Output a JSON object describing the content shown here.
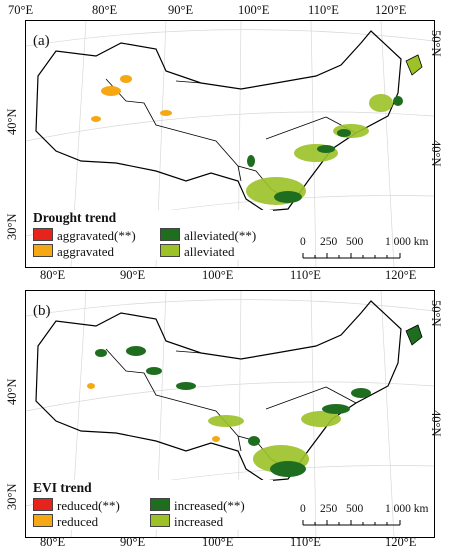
{
  "top_axis": [
    "70°E",
    "80°E",
    "90°E",
    "100°E",
    "110°E",
    "120°E"
  ],
  "bottom_axis": [
    "80°E",
    "90°E",
    "100°E",
    "110°E",
    "120°E"
  ],
  "left_axis": [
    "40°N",
    "30°N"
  ],
  "right_axis": [
    "50°N",
    "40°N"
  ],
  "panels": [
    {
      "label": "(a)",
      "legend_title": "Drought trend",
      "legend_items": [
        {
          "label": "aggravated(**)",
          "color": "#e8231b"
        },
        {
          "label": "alleviated(**)",
          "color": "#1f6e1f"
        },
        {
          "label": "aggravated",
          "color": "#f5a814"
        },
        {
          "label": "alleviated",
          "color": "#9cc227"
        }
      ]
    },
    {
      "label": "(b)",
      "legend_title": "EVI trend",
      "legend_items": [
        {
          "label": "reduced(**)",
          "color": "#e8231b"
        },
        {
          "label": "increased(**)",
          "color": "#1f6e1f"
        },
        {
          "label": "reduced",
          "color": "#f5a814"
        },
        {
          "label": "increased",
          "color": "#9cc227"
        }
      ]
    }
  ],
  "scale": {
    "ticks": [
      "0",
      "250",
      "500",
      "1 000 km"
    ]
  }
}
